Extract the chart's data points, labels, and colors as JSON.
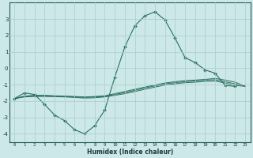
{
  "xlabel": "Humidex (Indice chaleur)",
  "background_color": "#cce8e8",
  "grid_color": "#aacccc",
  "line_color": "#2a7060",
  "x_values": [
    0,
    1,
    2,
    3,
    4,
    5,
    6,
    7,
    8,
    9,
    10,
    11,
    12,
    13,
    14,
    15,
    16,
    17,
    18,
    19,
    20,
    21,
    22,
    23
  ],
  "line1": [
    -1.85,
    -1.5,
    -1.6,
    -2.2,
    -2.85,
    -3.2,
    -3.75,
    -4.0,
    -3.5,
    -2.55,
    -0.55,
    1.3,
    2.6,
    3.2,
    3.45,
    2.95,
    1.85,
    0.65,
    0.35,
    -0.1,
    -0.3,
    -1.05,
    -1.1,
    null
  ],
  "line2": [
    -1.85,
    -1.7,
    -1.65,
    -1.65,
    -1.68,
    -1.7,
    -1.72,
    -1.75,
    -1.72,
    -1.68,
    -1.55,
    -1.42,
    -1.28,
    -1.15,
    -1.02,
    -0.9,
    -0.82,
    -0.75,
    -0.72,
    -0.68,
    -0.62,
    -0.72,
    -0.85,
    -1.1
  ],
  "line3": [
    -1.85,
    -1.72,
    -1.68,
    -1.68,
    -1.7,
    -1.72,
    -1.75,
    -1.78,
    -1.75,
    -1.72,
    -1.6,
    -1.48,
    -1.35,
    -1.2,
    -1.08,
    -0.95,
    -0.88,
    -0.82,
    -0.78,
    -0.72,
    -0.7,
    -0.82,
    -0.95,
    -1.1
  ],
  "line4": [
    -1.85,
    -1.75,
    -1.72,
    -1.72,
    -1.73,
    -1.75,
    -1.78,
    -1.82,
    -1.8,
    -1.75,
    -1.65,
    -1.55,
    -1.42,
    -1.28,
    -1.15,
    -1.02,
    -0.95,
    -0.88,
    -0.85,
    -0.8,
    -0.78,
    -0.9,
    -1.05,
    -1.1
  ],
  "ylim": [
    -4.5,
    4.0
  ],
  "xlim": [
    -0.5,
    23.5
  ],
  "yticks": [
    -4,
    -3,
    -2,
    -1,
    0,
    1,
    2,
    3
  ],
  "xticks": [
    0,
    1,
    2,
    3,
    4,
    5,
    6,
    7,
    8,
    9,
    10,
    11,
    12,
    13,
    14,
    15,
    16,
    17,
    18,
    19,
    20,
    21,
    22,
    23
  ],
  "xtick_labels": [
    "0",
    "1",
    "2",
    "3",
    "4",
    "5",
    "6",
    "7",
    "8",
    "9",
    "10",
    "11",
    "12",
    "13",
    "14",
    "15",
    "16",
    "17",
    "18",
    "19",
    "20",
    "21",
    "22",
    "23"
  ]
}
